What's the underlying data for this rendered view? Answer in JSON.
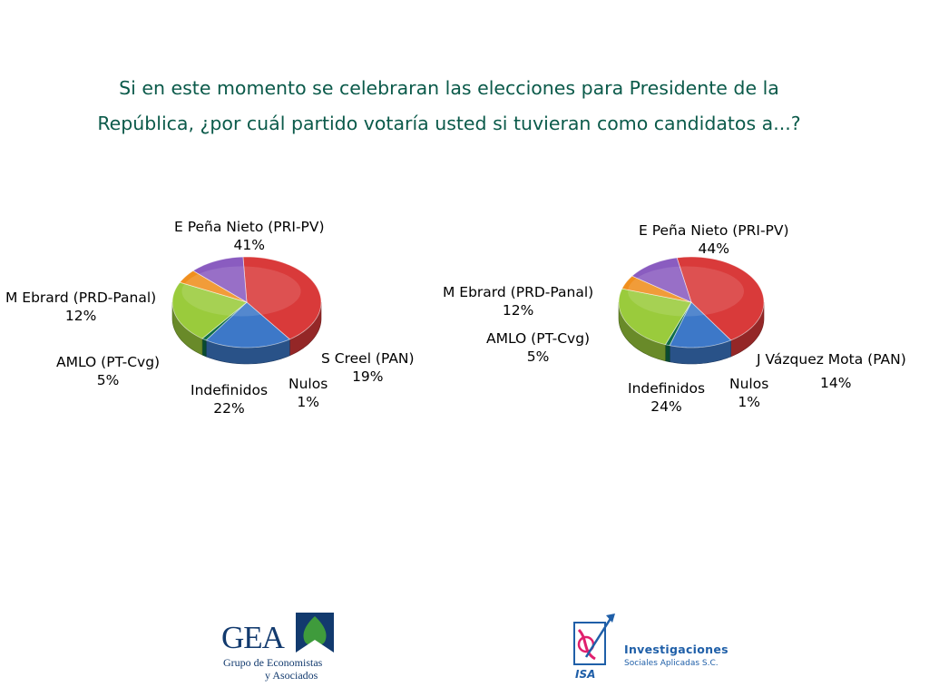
{
  "title": {
    "line1": "Si en este momento se celebraran las elecciones para Presidente de la",
    "line2": "República, ¿por cuál partido votaría usted si tuvieran como candidatos a...?"
  },
  "chart_data": [
    {
      "type": "pie",
      "categories": [
        "E Peña Nieto (PRI-PV)",
        "S Creel (PAN)",
        "Nulos",
        "Indefinidos",
        "AMLO (PT-Cvg)",
        "M Ebrard (PRD-Panal)"
      ],
      "values": [
        41,
        19,
        1,
        22,
        5,
        12
      ],
      "value_labels": [
        "41%",
        "19%",
        "1%",
        "22%",
        "5%",
        "12%"
      ],
      "colors": [
        "#d93a3a",
        "#3d78c8",
        "#0f6e4a",
        "#9acb3c",
        "#f08f1e",
        "#8a5cc0"
      ]
    },
    {
      "type": "pie",
      "categories": [
        "E Peña Nieto (PRI-PV)",
        "J Vázquez Mota (PAN)",
        "Nulos",
        "Indefinidos",
        "AMLO (PT-Cvg)",
        "M Ebrard (PRD-Panal)"
      ],
      "values": [
        44,
        14,
        1,
        24,
        5,
        12
      ],
      "value_labels": [
        "44%",
        "14%",
        "1%",
        "24%",
        "5%",
        "12%"
      ],
      "colors": [
        "#d93a3a",
        "#3d78c8",
        "#0f6e4a",
        "#9acb3c",
        "#f08f1e",
        "#8a5cc0"
      ]
    }
  ],
  "logos": {
    "gea": {
      "word": "GEA",
      "sub1": "Grupo de Economistas",
      "sub2": "y Asociados"
    },
    "isa": {
      "mark_text": "ISA",
      "line1": "Investigaciones",
      "line2": "Sociales Aplicadas S.C."
    }
  }
}
